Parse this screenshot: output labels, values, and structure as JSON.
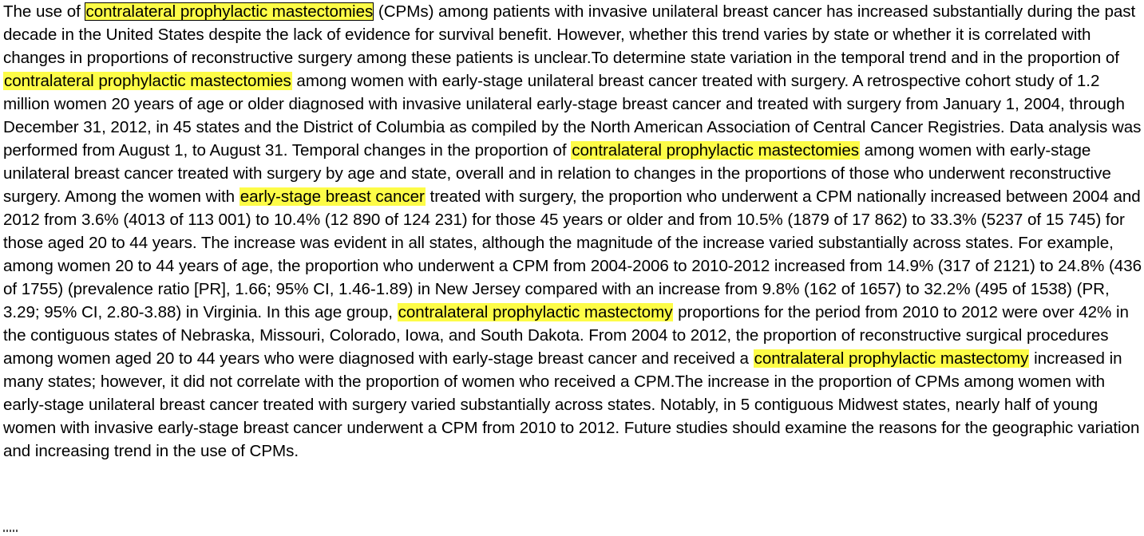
{
  "abstract": {
    "p1": "The use of ",
    "h1": "contralateral prophylactic mastectomies",
    "p2": " (CPMs) among patients with invasive unilateral breast cancer has increased substantially during the past decade in the United States despite the lack of evidence for survival benefit. However, whether this trend varies by state or whether it is correlated with changes in proportions of reconstructive surgery among these patients is unclear.To determine state variation in the temporal trend and in the proportion of ",
    "h2": "contralateral prophylactic mastectomies",
    "p3": " among women with early-stage unilateral breast cancer treated with surgery. A retrospective cohort study of 1.2 million women 20 years of age or older diagnosed with invasive unilateral early-stage breast cancer and treated with surgery from January 1, 2004, through December 31, 2012, in 45 states and the District of Columbia as compiled by the North American Association of Central Cancer Registries. Data analysis was performed from August 1, to August 31. Temporal changes in the proportion of ",
    "h3": "contralateral prophylactic mastectomies",
    "p4": " among women with early-stage unilateral breast cancer treated with surgery by age and state, overall and in relation to changes in the proportions of those who underwent reconstructive surgery. Among the women with ",
    "h4": "early-stage breast cancer",
    "p5": " treated with surgery, the proportion who underwent a CPM nationally increased between 2004 and 2012 from 3.6% (4013 of 113 001) to 10.4% (12 890 of 124 231) for those 45 years or older and from 10.5% (1879 of 17 862) to 33.3% (5237 of 15 745) for those aged 20 to 44 years. The increase was evident in all states, although the magnitude of the increase varied substantially across states. For example, among women 20 to 44 years of age, the proportion who underwent a CPM from 2004-2006 to 2010-2012 increased from 14.9% (317 of 2121) to 24.8% (436 of 1755) (prevalence ratio [PR], 1.66; 95% CI, 1.46-1.89) in New Jersey compared with an increase from 9.8% (162 of 1657) to 32.2% (495 of 1538) (PR, 3.29; 95% CI, 2.80-3.88) in Virginia. In this age group, ",
    "h5": "contralateral prophylactic mastectomy",
    "p6": " proportions for the period from 2010 to 2012 were over 42% in the contiguous states of Nebraska, Missouri, Colorado, Iowa, and South Dakota. From 2004 to 2012, the proportion of reconstructive surgical procedures among women aged 20 to 44 years who were diagnosed with early-stage breast cancer and received a ",
    "h6": "contralateral prophylactic mastectomy",
    "p7": " increased in many states; however, it did not correlate with the proportion of women who received a CPM.The increase in the proportion of CPMs among women with early-stage unilateral breast cancer treated with surgery varied substantially across states. Notably, in 5 contiguous Midwest states, nearly half of young women with invasive early-stage breast cancer underwent a CPM from 2010 to 2012. Future studies should examine the reasons for the geographic variation and increasing trend in the use of CPMs."
  },
  "colors": {
    "highlight": "#fdfc47",
    "text": "#000000",
    "background": "#ffffff"
  }
}
